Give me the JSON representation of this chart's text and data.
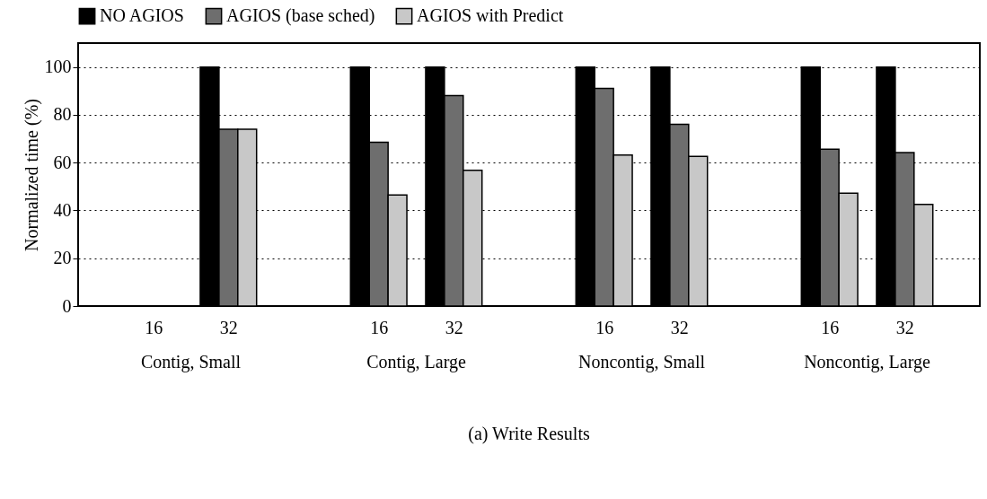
{
  "chart_data": {
    "type": "bar",
    "title": "(a) Write Results",
    "ylabel": "Normalized time (%)",
    "categories": [
      "16",
      "32",
      "16",
      "32",
      "16",
      "32",
      "16",
      "32"
    ],
    "annotations": [
      "Contig, Small",
      "Contig, Large",
      "Noncontig, Small",
      "Noncontig, Large"
    ],
    "series": [
      {
        "name": "NO AGIOS",
        "color": "#000000",
        "values": [
          null,
          100,
          100,
          100,
          100,
          100,
          100,
          100
        ]
      },
      {
        "name": "AGIOS (base sched)",
        "color": "#6e6e6e",
        "values": [
          null,
          74,
          68.5,
          88,
          91,
          76,
          65.6,
          64.2
        ]
      },
      {
        "name": "AGIOS with Predict",
        "color": "#c8c8c8",
        "values": [
          null,
          74,
          46.5,
          56.8,
          63.2,
          62.6,
          47.2,
          42.5
        ]
      }
    ],
    "ylim": [
      0,
      110
    ],
    "yticks": [
      0,
      20,
      40,
      60,
      80,
      100
    ],
    "grid": "y",
    "legend": "top"
  }
}
